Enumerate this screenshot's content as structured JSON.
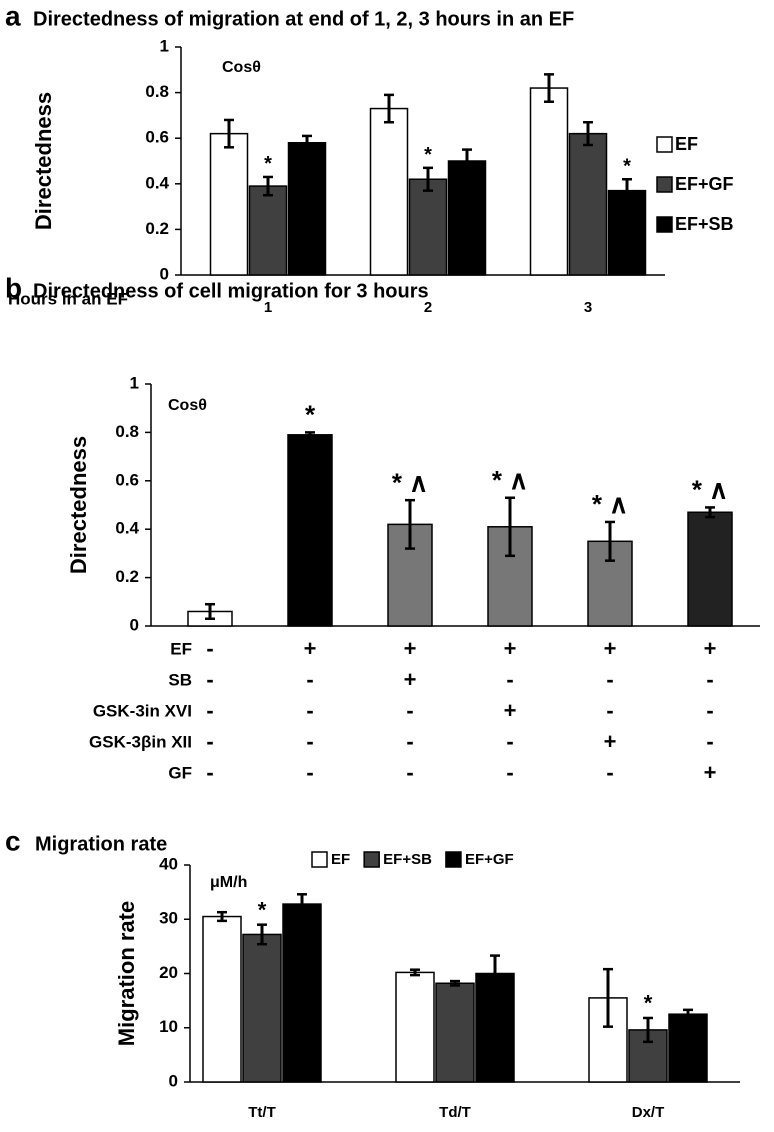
{
  "chart_data": [
    {
      "type": "bar",
      "letter": "a",
      "title": "Directedness of migration at end of 1, 2, 3 hours in an EF",
      "ylabel": "Directedness",
      "annotation": "Cosθ",
      "xlabel": "Hours in an EF",
      "categories": [
        "1",
        "2",
        "3"
      ],
      "series": [
        {
          "name": "EF",
          "color": "#ffffff",
          "values": [
            0.62,
            0.73,
            0.82
          ],
          "errors": [
            0.06,
            0.06,
            0.06
          ],
          "significance": [
            null,
            null,
            null
          ]
        },
        {
          "name": "EF+GF",
          "color": "#404040",
          "values": [
            0.39,
            0.42,
            0.62
          ],
          "errors": [
            0.04,
            0.05,
            0.05
          ],
          "significance": [
            "*",
            "*",
            null
          ]
        },
        {
          "name": "EF+SB",
          "color": "#000000",
          "values": [
            0.58,
            0.5,
            0.37
          ],
          "errors": [
            0.03,
            0.05,
            0.05
          ],
          "significance": [
            null,
            null,
            "*"
          ]
        }
      ],
      "ylim": [
        0,
        1
      ],
      "yticks": [
        0,
        0.2,
        0.4,
        0.6,
        0.8,
        1
      ],
      "legend": "right"
    },
    {
      "type": "bar",
      "letter": "b",
      "title": "Directedness of cell migration for 3 hours",
      "ylabel": "Directedness",
      "annotation": "Cosθ",
      "categories": [
        null,
        null,
        null,
        null,
        null,
        null
      ],
      "values": [
        0.06,
        0.79,
        0.42,
        0.41,
        0.35,
        0.47
      ],
      "errors": [
        0.03,
        0.01,
        0.1,
        0.12,
        0.08,
        0.02
      ],
      "colors": [
        "#ffffff",
        "#000000",
        "#777777",
        "#777777",
        "#777777",
        "#222222"
      ],
      "significance": [
        null,
        "*",
        "* ∧",
        "* ∧",
        "* ∧",
        "* ∧"
      ],
      "treatments": [
        {
          "name": "EF",
          "signs": [
            "-",
            "+",
            "+",
            "+",
            "+",
            "+"
          ]
        },
        {
          "name": "SB",
          "signs": [
            "-",
            "-",
            "+",
            "-",
            "-",
            "-"
          ]
        },
        {
          "name": "GSK-3in XVI",
          "signs": [
            "-",
            "-",
            "-",
            "+",
            "-",
            "-"
          ]
        },
        {
          "name": "GSK-3βin XII",
          "signs": [
            "-",
            "-",
            "-",
            "-",
            "+",
            "-"
          ]
        },
        {
          "name": "GF",
          "signs": [
            "-",
            "-",
            "-",
            "-",
            "-",
            "+"
          ]
        }
      ],
      "ylim": [
        0,
        1
      ],
      "yticks": [
        0,
        0.2,
        0.4,
        0.6,
        0.8,
        1
      ]
    },
    {
      "type": "bar",
      "letter": "c",
      "title": "Migration rate",
      "ylabel": "Migration rate",
      "annotation": "μM/h",
      "categories": [
        "Tt/T",
        "Td/T",
        "Dx/T"
      ],
      "series": [
        {
          "name": "EF",
          "color": "#ffffff",
          "values": [
            30.5,
            20.2,
            15.5
          ],
          "errors": [
            0.8,
            0.5,
            5.3
          ],
          "significance": [
            null,
            null,
            null
          ]
        },
        {
          "name": "EF+SB",
          "color": "#404040",
          "values": [
            27.2,
            18.2,
            9.6
          ],
          "errors": [
            1.8,
            0.4,
            2.2
          ],
          "significance": [
            "*",
            null,
            "*"
          ]
        },
        {
          "name": "EF+GF",
          "color": "#000000",
          "values": [
            32.8,
            20.0,
            12.5
          ],
          "errors": [
            1.8,
            3.3,
            0.8
          ],
          "significance": [
            null,
            null,
            null
          ]
        }
      ],
      "ylim": [
        0,
        40
      ],
      "yticks": [
        0,
        10,
        20,
        30,
        40
      ],
      "legend": "top"
    }
  ]
}
